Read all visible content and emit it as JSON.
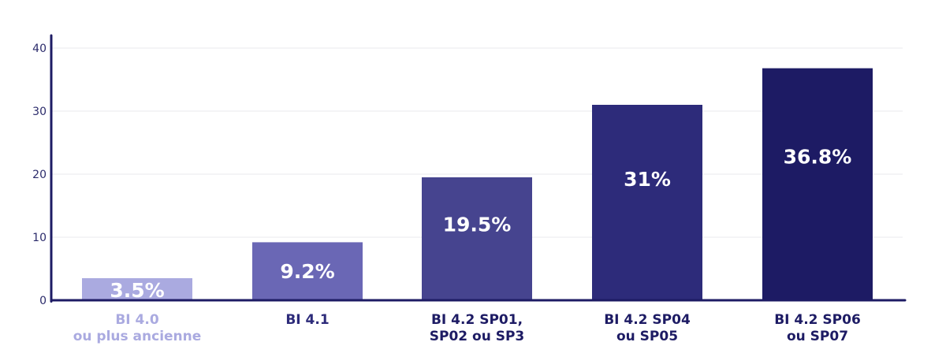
{
  "chart_data": {
    "type": "bar",
    "categories": [
      [
        "BI 4.0",
        "ou plus ancienne"
      ],
      [
        "BI 4.1"
      ],
      [
        "BI 4.2 SP01,",
        "SP02 ou SP3"
      ],
      [
        "BI 4.2 SP04",
        "ou SP05"
      ],
      [
        "BI 4.2 SP06",
        "ou SP07"
      ]
    ],
    "values": [
      3.5,
      9.2,
      19.5,
      31,
      36.8
    ],
    "data_labels": [
      "3.5%",
      "9.2%",
      "19.5%",
      "31%",
      "36.8%"
    ],
    "bar_colors": [
      "#aaaae0",
      "#6a67b5",
      "#46448f",
      "#2d2b7a",
      "#1d1b64"
    ],
    "category_label_colors": [
      "#aaaae0",
      "#2d2b7a",
      "#1d1b64",
      "#1d1b64",
      "#1d1b64"
    ],
    "ylim": [
      0,
      40
    ],
    "yticks": [
      0,
      10,
      20,
      30,
      40
    ],
    "grid": true,
    "axis_color": "#1d1b64",
    "grid_color": "#e8e8ee",
    "title": "",
    "xlabel": "",
    "ylabel": ""
  }
}
